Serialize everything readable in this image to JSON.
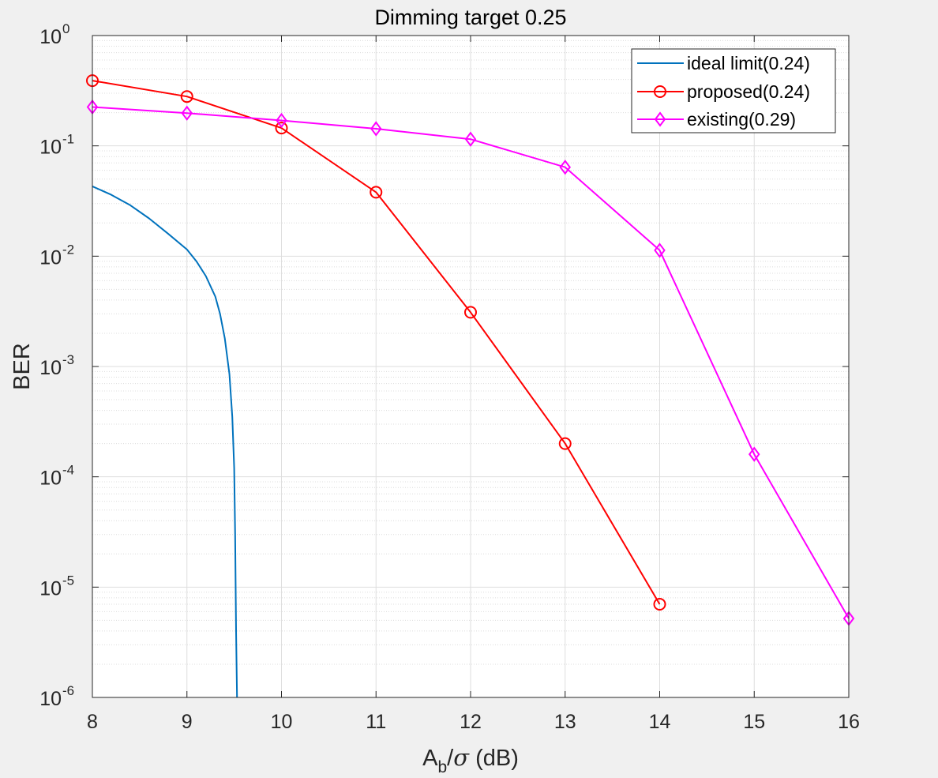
{
  "chart_data": {
    "type": "line",
    "title": "Dimming target 0.25",
    "xlabel": {
      "prefix": "A",
      "subscript": "b",
      "slash": "/",
      "symbol": "σ",
      "suffix": " (dB)"
    },
    "ylabel": "BER",
    "xlim": [
      8,
      16
    ],
    "ylim": [
      1e-06,
      1
    ],
    "yscale": "log",
    "grid": true,
    "minor_grid": true,
    "legend_position": "top-right",
    "xticks": [
      "8",
      "9",
      "10",
      "11",
      "12",
      "13",
      "14",
      "15",
      "16"
    ],
    "yticks": [
      {
        "base": "10",
        "exp": "0"
      },
      {
        "base": "10",
        "exp": "-1"
      },
      {
        "base": "10",
        "exp": "-2"
      },
      {
        "base": "10",
        "exp": "-3"
      },
      {
        "base": "10",
        "exp": "-4"
      },
      {
        "base": "10",
        "exp": "-5"
      },
      {
        "base": "10",
        "exp": "-6"
      }
    ],
    "series": [
      {
        "name": "ideal limit(0.24)",
        "color": "#0072bd",
        "marker": "none",
        "x": [
          8.0,
          8.2,
          8.4,
          8.6,
          8.8,
          9.0,
          9.1,
          9.2,
          9.3,
          9.35,
          9.4,
          9.45,
          9.48,
          9.5,
          9.51,
          9.52,
          9.53
        ],
        "y": [
          0.043,
          0.036,
          0.029,
          0.022,
          0.016,
          0.0115,
          0.009,
          0.0066,
          0.0043,
          0.003,
          0.0018,
          0.00085,
          0.00035,
          0.00012,
          3e-05,
          4e-06,
          1e-06
        ]
      },
      {
        "name": "proposed(0.24)",
        "color": "#ff0000",
        "marker": "circle",
        "x": [
          8,
          9,
          10,
          11,
          12,
          13,
          14
        ],
        "y": [
          0.39,
          0.28,
          0.145,
          0.038,
          0.0031,
          0.0002,
          7e-06
        ]
      },
      {
        "name": "existing(0.29)",
        "color": "#ff00ff",
        "marker": "diamond",
        "x": [
          8,
          9,
          10,
          11,
          12,
          13,
          14,
          15,
          16
        ],
        "y": [
          0.225,
          0.198,
          0.17,
          0.143,
          0.115,
          0.064,
          0.0113,
          0.00016,
          5.2e-06
        ]
      }
    ]
  }
}
